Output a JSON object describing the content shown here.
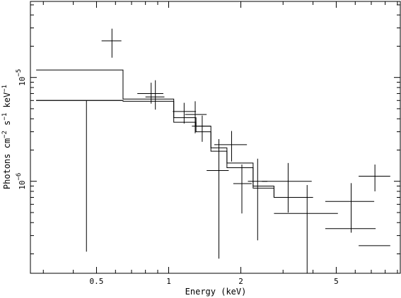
{
  "chart_data": {
    "type": "scatter",
    "title": "",
    "xlabel": "Energy (keV)",
    "ylabel": "Photons cm^-2 s^-1 keV^-1",
    "x_scale": "log",
    "y_scale": "log",
    "xlim": [
      0.265,
      9.25
    ],
    "ylim": [
      1.3e-07,
      5.4e-05
    ],
    "x_tick_labels": [
      "0.5",
      "1",
      "2",
      "5"
    ],
    "y_tick_labels": [
      "10^-6",
      "10^-5"
    ],
    "grid": false,
    "legend": "none",
    "series": [
      {
        "points": [
          {
            "x": 0.454,
            "x_err": [
              0.28,
              0.64
            ],
            "y": 6e-06,
            "y_err": [
              2.1e-07,
              6e-06
            ]
          },
          {
            "x": 0.58,
            "x_err": [
              0.525,
              0.635
            ],
            "y": 2.25e-05,
            "y_err": [
              1.55e-05,
              2.95e-05
            ]
          },
          {
            "x": 0.845,
            "x_err": [
              0.74,
              0.95
            ],
            "y": 7e-06,
            "y_err": [
              5.6e-06,
              8.9e-06
            ]
          },
          {
            "x": 0.88,
            "x_err": [
              0.8,
              0.96
            ],
            "y": 6.5e-06,
            "y_err": [
              4.9e-06,
              9.4e-06
            ]
          },
          {
            "x": 1.16,
            "x_err": [
              1.04,
              1.3
            ],
            "y": 4.7e-06,
            "y_err": [
              3.6e-06,
              5.7e-06
            ]
          },
          {
            "x": 1.29,
            "x_err": [
              1.17,
              1.44
            ],
            "y": 4.4e-06,
            "y_err": [
              2.9e-06,
              5.9e-06
            ]
          },
          {
            "x": 1.38,
            "x_err": [
              1.25,
              1.5
            ],
            "y": 3.4e-06,
            "y_err": [
              2.4e-06,
              4.3e-06
            ]
          },
          {
            "x": 1.62,
            "x_err": [
              1.44,
              1.78
            ],
            "y": 1.27e-06,
            "y_err": [
              1.8e-07,
              2.55e-06
            ]
          },
          {
            "x": 1.83,
            "x_err": [
              1.55,
              2.12
            ],
            "y": 2.25e-06,
            "y_err": [
              1.55e-06,
              3.05e-06
            ]
          },
          {
            "x": 2.02,
            "x_err": [
              1.86,
              2.22
            ],
            "y": 9.5e-07,
            "y_err": [
              4.9e-07,
              1.45e-06
            ]
          },
          {
            "x": 2.35,
            "x_err": [
              2.14,
              2.58
            ],
            "y": 1e-06,
            "y_err": [
              2.7e-07,
              1.65e-06
            ]
          },
          {
            "x": 3.15,
            "x_err": [
              2.45,
              3.95
            ],
            "y": 1e-06,
            "y_err": [
              5e-07,
              1.5e-06
            ]
          },
          {
            "x": 3.78,
            "x_err": [
              2.75,
              5.08
            ],
            "y": 4.9e-07,
            "y_err": [
              1.3e-07,
              9.2e-07
            ]
          },
          {
            "x": 5.77,
            "x_err": [
              4.5,
              7.2
            ],
            "y": 6.4e-07,
            "y_err": [
              3.2e-07,
              9.6e-07
            ]
          },
          {
            "x": 5.8,
            "x_err": [
              4.5,
              7.3
            ],
            "y": 3.5e-07,
            "y_err": [
              3.5e-07,
              3.5e-07
            ]
          },
          {
            "x": 7.25,
            "x_err": [
              6.2,
              8.4
            ],
            "y": 1.12e-06,
            "y_err": [
              8e-07,
              1.45e-06
            ]
          },
          {
            "x": 7.4,
            "x_err": [
              6.2,
              8.4
            ],
            "y": 2.4e-07,
            "y_err": [
              2.4e-07,
              2.4e-07
            ]
          }
        ]
      },
      {
        "type": "step",
        "bins": [
          {
            "x0": 0.28,
            "x1": 0.645,
            "y": 1.18e-05
          },
          {
            "x0": 0.645,
            "x1": 1.05,
            "y": 6.2e-06
          },
          {
            "x0": 1.05,
            "x1": 1.3,
            "y": 4.1e-06
          },
          {
            "x0": 1.3,
            "x1": 1.5,
            "y": 3.4e-06
          },
          {
            "x0": 1.5,
            "x1": 1.75,
            "y": 2.1e-06
          },
          {
            "x0": 1.75,
            "x1": 2.25,
            "y": 1.5e-06
          },
          {
            "x0": 2.25,
            "x1": 2.75,
            "y": 9e-07
          },
          {
            "x0": 2.75,
            "x1": 4.0,
            "y": 7e-07
          }
        ]
      },
      {
        "type": "step",
        "bins": [
          {
            "x0": 0.28,
            "x1": 0.645,
            "y": 6e-06
          },
          {
            "x0": 0.645,
            "x1": 1.05,
            "y": 5.9e-06
          },
          {
            "x0": 1.05,
            "x1": 1.3,
            "y": 3.7e-06
          },
          {
            "x0": 1.3,
            "x1": 1.5,
            "y": 3e-06
          },
          {
            "x0": 1.5,
            "x1": 1.75,
            "y": 1.95e-06
          },
          {
            "x0": 1.75,
            "x1": 2.25,
            "y": 1.35e-06
          },
          {
            "x0": 2.25,
            "x1": 2.75,
            "y": 8.6e-07
          },
          {
            "x0": 2.75,
            "x1": 4.0,
            "y": 7e-07
          }
        ]
      }
    ]
  }
}
